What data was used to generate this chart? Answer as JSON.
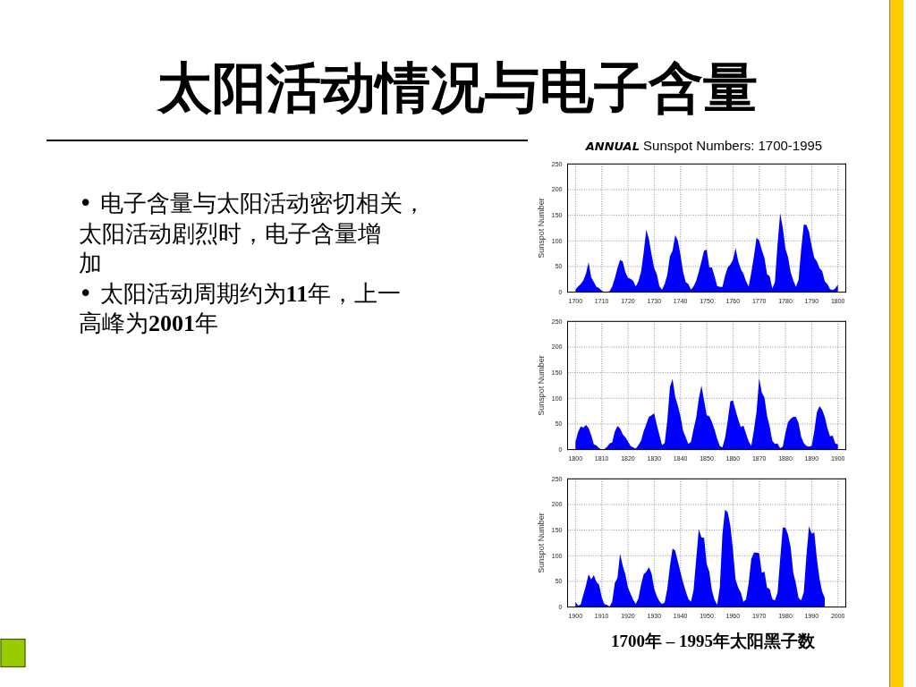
{
  "chart_data": [
    {
      "type": "other",
      "title": "太阳活动情况与电子含量",
      "annotations": [
        "• 电子含量与太阳活动密切相关，太阳活动剧烈时，电子含量增加",
        "• 太阳活动周期约为11年，上一高峰为2001年"
      ]
    },
    {
      "type": "area",
      "title": "ANNUAL Sunspot Numbers: 1700-1995",
      "ylabel": "Sunspot Number",
      "color": "#0000ff",
      "grid": true,
      "xlim": [
        1697,
        1803
      ],
      "xticks": [
        1700,
        1710,
        1720,
        1730,
        1740,
        1750,
        1760,
        1770,
        1780,
        1790,
        1800
      ],
      "ylim": [
        0,
        250
      ],
      "yticks": [
        0,
        50,
        100,
        150,
        200,
        250
      ],
      "x": [
        1700,
        1701,
        1702,
        1703,
        1704,
        1705,
        1706,
        1707,
        1708,
        1709,
        1710,
        1711,
        1712,
        1713,
        1714,
        1715,
        1716,
        1717,
        1718,
        1719,
        1720,
        1721,
        1722,
        1723,
        1724,
        1725,
        1726,
        1727,
        1728,
        1729,
        1730,
        1731,
        1732,
        1733,
        1734,
        1735,
        1736,
        1737,
        1738,
        1739,
        1740,
        1741,
        1742,
        1743,
        1744,
        1745,
        1746,
        1747,
        1748,
        1749,
        1750,
        1751,
        1752,
        1753,
        1754,
        1755,
        1756,
        1757,
        1758,
        1759,
        1760,
        1761,
        1762,
        1763,
        1764,
        1765,
        1766,
        1767,
        1768,
        1769,
        1770,
        1771,
        1772,
        1773,
        1774,
        1775,
        1776,
        1777,
        1778,
        1779,
        1780,
        1781,
        1782,
        1783,
        1784,
        1785,
        1786,
        1787,
        1788,
        1789,
        1790,
        1791,
        1792,
        1793,
        1794,
        1795,
        1796,
        1797,
        1798,
        1799,
        1800
      ],
      "values": [
        5,
        11,
        16,
        23,
        36,
        58,
        29,
        20,
        10,
        8,
        3,
        0,
        0,
        2,
        11,
        27,
        47,
        63,
        60,
        39,
        28,
        26,
        22,
        11,
        21,
        40,
        78,
        122,
        103,
        73,
        47,
        35,
        11,
        5,
        16,
        34,
        70,
        81,
        111,
        101,
        73,
        40,
        20,
        16,
        5,
        11,
        22,
        40,
        60,
        81,
        83,
        48,
        48,
        31,
        12,
        10,
        10,
        32,
        48,
        54,
        63,
        86,
        61,
        45,
        36,
        21,
        11,
        38,
        70,
        106,
        101,
        82,
        67,
        35,
        31,
        7,
        20,
        93,
        154,
        126,
        85,
        68,
        39,
        23,
        10,
        24,
        83,
        132,
        131,
        118,
        90,
        67,
        60,
        47,
        41,
        21,
        16,
        6,
        4,
        7,
        15
      ]
    },
    {
      "type": "area",
      "ylabel": "Sunspot Number",
      "color": "#0000ff",
      "grid": true,
      "xlim": [
        1797,
        1903
      ],
      "xticks": [
        1800,
        1810,
        1820,
        1830,
        1840,
        1850,
        1860,
        1870,
        1880,
        1890,
        1900
      ],
      "ylim": [
        0,
        250
      ],
      "yticks": [
        0,
        50,
        100,
        150,
        200,
        250
      ],
      "x": [
        1800,
        1801,
        1802,
        1803,
        1804,
        1805,
        1806,
        1807,
        1808,
        1809,
        1810,
        1811,
        1812,
        1813,
        1814,
        1815,
        1816,
        1817,
        1818,
        1819,
        1820,
        1821,
        1822,
        1823,
        1824,
        1825,
        1826,
        1827,
        1828,
        1829,
        1830,
        1831,
        1832,
        1833,
        1834,
        1835,
        1836,
        1837,
        1838,
        1839,
        1840,
        1841,
        1842,
        1843,
        1844,
        1845,
        1846,
        1847,
        1848,
        1849,
        1850,
        1851,
        1852,
        1853,
        1854,
        1855,
        1856,
        1857,
        1858,
        1859,
        1860,
        1861,
        1862,
        1863,
        1864,
        1865,
        1866,
        1867,
        1868,
        1869,
        1870,
        1871,
        1872,
        1873,
        1874,
        1875,
        1876,
        1877,
        1878,
        1879,
        1880,
        1881,
        1882,
        1883,
        1884,
        1885,
        1886,
        1887,
        1888,
        1889,
        1890,
        1891,
        1892,
        1893,
        1894,
        1895,
        1896,
        1897,
        1898,
        1899,
        1900
      ],
      "values": [
        15,
        34,
        45,
        43,
        48,
        42,
        28,
        10,
        8,
        3,
        0,
        1,
        5,
        12,
        14,
        35,
        46,
        41,
        30,
        24,
        16,
        7,
        4,
        2,
        9,
        17,
        36,
        50,
        64,
        67,
        71,
        48,
        28,
        9,
        13,
        57,
        122,
        138,
        103,
        86,
        65,
        37,
        24,
        11,
        15,
        40,
        62,
        99,
        125,
        96,
        67,
        65,
        54,
        39,
        21,
        7,
        4,
        23,
        55,
        94,
        96,
        77,
        59,
        44,
        47,
        31,
        16,
        7,
        38,
        74,
        139,
        111,
        102,
        66,
        45,
        17,
        11,
        12,
        3,
        6,
        32,
        54,
        60,
        64,
        64,
        52,
        25,
        13,
        7,
        6,
        7,
        36,
        73,
        85,
        78,
        64,
        42,
        26,
        27,
        12,
        10
      ]
    },
    {
      "type": "area",
      "ylabel": "Sunspot Number",
      "color": "#0000ff",
      "grid": true,
      "xlim": [
        1897,
        2003
      ],
      "xticks": [
        1900,
        1910,
        1920,
        1930,
        1940,
        1950,
        1960,
        1970,
        1980,
        1990,
        2000
      ],
      "ylim": [
        0,
        250
      ],
      "yticks": [
        0,
        50,
        100,
        150,
        200,
        250
      ],
      "x": [
        1900,
        1901,
        1902,
        1903,
        1904,
        1905,
        1906,
        1907,
        1908,
        1909,
        1910,
        1911,
        1912,
        1913,
        1914,
        1915,
        1916,
        1917,
        1918,
        1919,
        1920,
        1921,
        1922,
        1923,
        1924,
        1925,
        1926,
        1927,
        1928,
        1929,
        1930,
        1931,
        1932,
        1933,
        1934,
        1935,
        1936,
        1937,
        1938,
        1939,
        1940,
        1941,
        1942,
        1943,
        1944,
        1945,
        1946,
        1947,
        1948,
        1949,
        1950,
        1951,
        1952,
        1953,
        1954,
        1955,
        1956,
        1957,
        1958,
        1959,
        1960,
        1961,
        1962,
        1963,
        1964,
        1965,
        1966,
        1967,
        1968,
        1969,
        1970,
        1971,
        1972,
        1973,
        1974,
        1975,
        1976,
        1977,
        1978,
        1979,
        1980,
        1981,
        1982,
        1983,
        1984,
        1985,
        1986,
        1987,
        1988,
        1989,
        1990,
        1991,
        1992,
        1993,
        1994,
        1995
      ],
      "values": [
        10,
        3,
        5,
        24,
        42,
        64,
        54,
        62,
        49,
        44,
        19,
        6,
        4,
        1,
        10,
        47,
        57,
        104,
        81,
        64,
        38,
        26,
        14,
        6,
        17,
        44,
        64,
        69,
        78,
        65,
        36,
        21,
        11,
        6,
        9,
        36,
        80,
        114,
        110,
        89,
        68,
        48,
        31,
        16,
        10,
        33,
        93,
        152,
        136,
        135,
        84,
        69,
        32,
        14,
        4,
        38,
        142,
        190,
        185,
        159,
        112,
        54,
        38,
        28,
        10,
        15,
        47,
        94,
        106,
        106,
        105,
        67,
        69,
        38,
        35,
        16,
        13,
        28,
        93,
        155,
        155,
        141,
        116,
        67,
        46,
        18,
        13,
        29,
        100,
        158,
        143,
        146,
        94,
        55,
        30,
        18
      ],
      "annotations": [
        "1700年 – 1995年太阳黑子数"
      ]
    }
  ]
}
